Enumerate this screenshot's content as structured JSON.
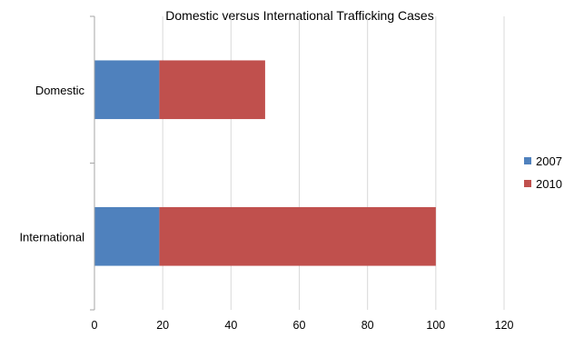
{
  "chart_data": {
    "type": "bar",
    "orientation": "horizontal",
    "stacked": true,
    "title": "Domestic versus International Trafficking Cases",
    "categories": [
      "Domestic",
      "International"
    ],
    "series": [
      {
        "name": "2007",
        "values": [
          19,
          19
        ],
        "color": "#4F81BD"
      },
      {
        "name": "2010",
        "values": [
          31,
          81
        ],
        "color": "#C0504D"
      }
    ],
    "xlim": [
      0,
      120
    ],
    "xticks": [
      "0",
      "20",
      "40",
      "60",
      "80",
      "100",
      "120"
    ],
    "xlabel": "",
    "ylabel": "",
    "grid": "vertical major gridlines",
    "legend": "right"
  }
}
